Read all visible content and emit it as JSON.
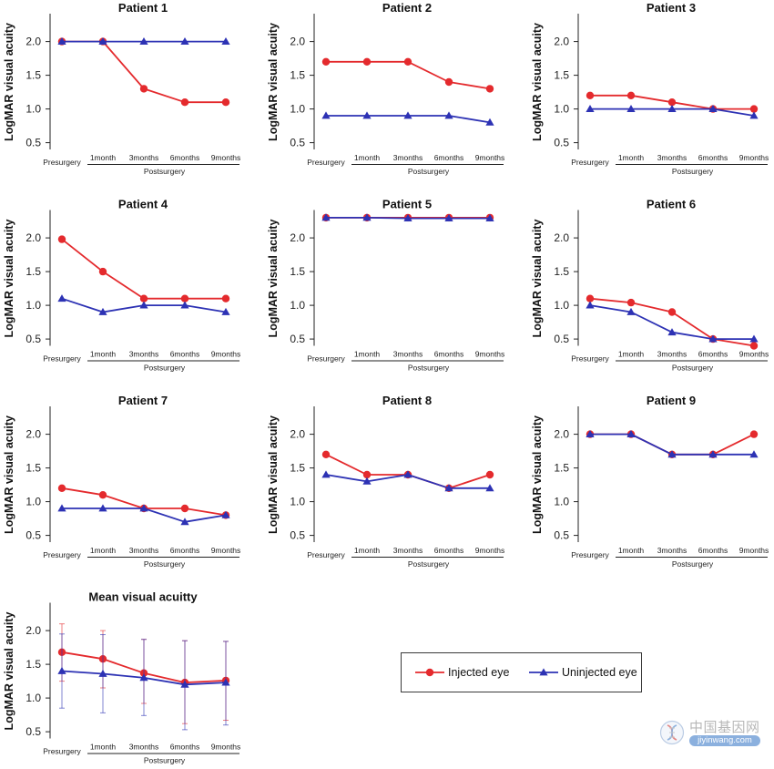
{
  "chart_data": [
    {
      "type": "line",
      "title": "Patient 1",
      "ylabel": "LogMAR visual acuity",
      "categories": [
        "Presurgery",
        "1month",
        "3months",
        "6months",
        "9months"
      ],
      "xgroup": {
        "label": "Postsurgery",
        "range": [
          "1month",
          "9months"
        ]
      },
      "yticks": [
        "2.0",
        "1.5",
        "1.0",
        "0.5"
      ],
      "ylim": [
        0.4,
        2.4
      ],
      "grid": false,
      "series": [
        {
          "name": "Injected eye",
          "color": "#e42a2d",
          "marker": "circle",
          "values": [
            2.0,
            2.0,
            1.3,
            1.1,
            1.1
          ]
        },
        {
          "name": "Uninjected eye",
          "color": "#2d32b4",
          "marker": "triangle",
          "values": [
            2.0,
            2.0,
            2.0,
            2.0,
            2.0
          ]
        }
      ]
    },
    {
      "type": "line",
      "title": "Patient 2",
      "ylabel": "LogMAR visual acuity",
      "categories": [
        "Presurgery",
        "1month",
        "3months",
        "6months",
        "9months"
      ],
      "xgroup": {
        "label": "Postsurgery",
        "range": [
          "1month",
          "9months"
        ]
      },
      "yticks": [
        "2.0",
        "1.5",
        "1.0",
        "0.5"
      ],
      "ylim": [
        0.4,
        2.4
      ],
      "grid": false,
      "series": [
        {
          "name": "Injected eye",
          "color": "#e42a2d",
          "marker": "circle",
          "values": [
            1.7,
            1.7,
            1.7,
            1.4,
            1.3
          ]
        },
        {
          "name": "Uninjected eye",
          "color": "#2d32b4",
          "marker": "triangle",
          "values": [
            0.9,
            0.9,
            0.9,
            0.9,
            0.8
          ]
        }
      ]
    },
    {
      "type": "line",
      "title": "Patient 3",
      "ylabel": "LogMAR visual acuity",
      "categories": [
        "Presurgery",
        "1month",
        "3months",
        "6months",
        "9months"
      ],
      "xgroup": {
        "label": "Postsurgery",
        "range": [
          "1month",
          "9months"
        ]
      },
      "yticks": [
        "2.0",
        "1.5",
        "1.0",
        "0.5"
      ],
      "ylim": [
        0.4,
        2.4
      ],
      "grid": false,
      "series": [
        {
          "name": "Injected eye",
          "color": "#e42a2d",
          "marker": "circle",
          "values": [
            1.2,
            1.2,
            1.1,
            1.0,
            1.0
          ]
        },
        {
          "name": "Uninjected eye",
          "color": "#2d32b4",
          "marker": "triangle",
          "values": [
            1.0,
            1.0,
            1.0,
            1.0,
            0.9
          ]
        }
      ]
    },
    {
      "type": "line",
      "title": "Patient 4",
      "ylabel": "LogMAR visual acuity",
      "categories": [
        "Presurgery",
        "1month",
        "3months",
        "6months",
        "9months"
      ],
      "xgroup": {
        "label": "Postsurgery",
        "range": [
          "1month",
          "9months"
        ]
      },
      "yticks": [
        "2.0",
        "1.5",
        "1.0",
        "0.5"
      ],
      "ylim": [
        0.4,
        2.4
      ],
      "grid": false,
      "series": [
        {
          "name": "Injected eye",
          "color": "#e42a2d",
          "marker": "circle",
          "values": [
            1.98,
            1.5,
            1.1,
            1.1,
            1.1
          ]
        },
        {
          "name": "Uninjected eye",
          "color": "#2d32b4",
          "marker": "triangle",
          "values": [
            1.1,
            0.9,
            1.0,
            1.0,
            0.9
          ]
        }
      ]
    },
    {
      "type": "line",
      "title": "Patient 5",
      "ylabel": "LogMAR visual acuity",
      "categories": [
        "Presurgery",
        "1month",
        "3months",
        "6months",
        "9months"
      ],
      "xgroup": {
        "label": "Postsurgery",
        "range": [
          "1month",
          "9months"
        ]
      },
      "yticks": [
        "2.0",
        "1.5",
        "1.0",
        "0.5"
      ],
      "ylim": [
        0.4,
        2.4
      ],
      "grid": false,
      "series": [
        {
          "name": "Injected eye",
          "color": "#e42a2d",
          "marker": "circle",
          "values": [
            2.3,
            2.3,
            2.3,
            2.3,
            2.3
          ]
        },
        {
          "name": "Uninjected eye",
          "color": "#2d32b4",
          "marker": "triangle",
          "values": [
            2.3,
            2.3,
            2.29,
            2.29,
            2.29
          ]
        }
      ]
    },
    {
      "type": "line",
      "title": "Patient 6",
      "ylabel": "LogMAR visual acuity",
      "categories": [
        "Presurgery",
        "1month",
        "3months",
        "6months",
        "9months"
      ],
      "xgroup": {
        "label": "Postsurgery",
        "range": [
          "1month",
          "9months"
        ]
      },
      "yticks": [
        "2.0",
        "1.5",
        "1.0",
        "0.5"
      ],
      "ylim": [
        0.4,
        2.4
      ],
      "grid": false,
      "series": [
        {
          "name": "Injected eye",
          "color": "#e42a2d",
          "marker": "circle",
          "values": [
            1.1,
            1.04,
            0.9,
            0.5,
            0.4
          ]
        },
        {
          "name": "Uninjected eye",
          "color": "#2d32b4",
          "marker": "triangle",
          "values": [
            1.0,
            0.9,
            0.6,
            0.5,
            0.5
          ]
        }
      ]
    },
    {
      "type": "line",
      "title": "Patient 7",
      "ylabel": "LogMAR visual acuity",
      "categories": [
        "Presurgery",
        "1month",
        "3months",
        "6months",
        "9months"
      ],
      "xgroup": {
        "label": "Postsurgery",
        "range": [
          "1month",
          "9months"
        ]
      },
      "yticks": [
        "2.0",
        "1.5",
        "1.0",
        "0.5"
      ],
      "ylim": [
        0.4,
        2.4
      ],
      "grid": false,
      "series": [
        {
          "name": "Injected eye",
          "color": "#e42a2d",
          "marker": "circle",
          "values": [
            1.2,
            1.1,
            0.9,
            0.9,
            0.8
          ]
        },
        {
          "name": "Uninjected eye",
          "color": "#2d32b4",
          "marker": "triangle",
          "values": [
            0.9,
            0.9,
            0.9,
            0.7,
            0.8
          ]
        }
      ]
    },
    {
      "type": "line",
      "title": "Patient 8",
      "ylabel": "LogMAR visual acuity",
      "categories": [
        "Presurgery",
        "1month",
        "3months",
        "6months",
        "9months"
      ],
      "xgroup": {
        "label": "Postsurgery",
        "range": [
          "1month",
          "9months"
        ]
      },
      "yticks": [
        "2.0",
        "1.5",
        "1.0",
        "0.5"
      ],
      "ylim": [
        0.4,
        2.4
      ],
      "grid": false,
      "series": [
        {
          "name": "Injected eye",
          "color": "#e42a2d",
          "marker": "circle",
          "values": [
            1.7,
            1.4,
            1.4,
            1.2,
            1.4
          ]
        },
        {
          "name": "Uninjected eye",
          "color": "#2d32b4",
          "marker": "triangle",
          "values": [
            1.4,
            1.3,
            1.4,
            1.2,
            1.2
          ]
        }
      ]
    },
    {
      "type": "line",
      "title": "Patient 9",
      "ylabel": "LogMAR visual acuity",
      "categories": [
        "Presurgery",
        "1month",
        "3months",
        "6months",
        "9months"
      ],
      "xgroup": {
        "label": "Postsurgery",
        "range": [
          "1month",
          "9months"
        ]
      },
      "yticks": [
        "2.0",
        "1.5",
        "1.0",
        "0.5"
      ],
      "ylim": [
        0.4,
        2.4
      ],
      "grid": false,
      "series": [
        {
          "name": "Injected eye",
          "color": "#e42a2d",
          "marker": "circle",
          "values": [
            2.0,
            2.0,
            1.7,
            1.7,
            2.0
          ]
        },
        {
          "name": "Uninjected eye",
          "color": "#2d32b4",
          "marker": "triangle",
          "values": [
            2.0,
            2.0,
            1.7,
            1.7,
            1.7
          ]
        }
      ]
    },
    {
      "type": "line",
      "title": "Mean visual acuitty",
      "ylabel": "LogMAR visual acuity",
      "categories": [
        "Presurgery",
        "1month",
        "3months",
        "6months",
        "9months"
      ],
      "xgroup": {
        "label": "Postsurgery",
        "range": [
          "1month",
          "9months"
        ]
      },
      "yticks": [
        "2.0",
        "1.5",
        "1.0",
        "0.5"
      ],
      "ylim": [
        0.4,
        2.4
      ],
      "grid": false,
      "series": [
        {
          "name": "Injected eye",
          "color": "#e42a2d",
          "marker": "circle",
          "values": [
            1.68,
            1.58,
            1.37,
            1.23,
            1.26
          ],
          "error_bars": [
            [
              1.25,
              2.1
            ],
            [
              1.15,
              2.0
            ],
            [
              0.92,
              1.87
            ],
            [
              0.62,
              1.85
            ],
            [
              0.67,
              1.84
            ]
          ]
        },
        {
          "name": "Uninjected eye",
          "color": "#2d32b4",
          "marker": "triangle",
          "values": [
            1.4,
            1.36,
            1.3,
            1.2,
            1.23
          ],
          "error_bars": [
            [
              0.85,
              1.95
            ],
            [
              0.78,
              1.94
            ],
            [
              0.74,
              1.87
            ],
            [
              0.53,
              1.85
            ],
            [
              0.6,
              1.84
            ]
          ]
        }
      ]
    }
  ],
  "legend": {
    "placement": "bottom-right",
    "entries": [
      {
        "label": "Injected eye",
        "color": "#e42a2d",
        "marker": "circle"
      },
      {
        "label": "Uninjected eye",
        "color": "#2d32b4",
        "marker": "triangle"
      }
    ]
  },
  "watermark": {
    "text": "中国基因网",
    "url_text": "jiyinwang.com",
    "icon": "dna-globe-icon",
    "pill_color": "#5b8fd1"
  }
}
